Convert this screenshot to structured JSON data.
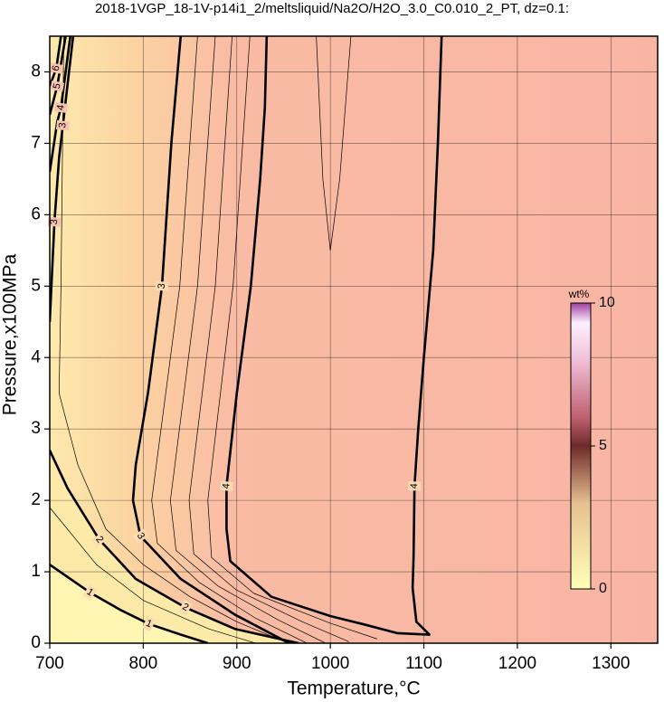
{
  "chart_data": {
    "type": "contour",
    "title": "2018-1VGP_18-1V-p14i1_2/meltsliquid/Na2O/H2O_3.0_C0.010_2_PT, dz=0.1:",
    "x_label": "Temperature,°C",
    "y_label": "Pressure,x100MPa",
    "xlim": [
      700,
      1350
    ],
    "ylim": [
      0,
      8.5
    ],
    "xticks": [
      700,
      800,
      900,
      1000,
      1100,
      1200,
      1300
    ],
    "yticks": [
      0,
      1,
      2,
      3,
      4,
      5,
      6,
      7,
      8
    ],
    "grid": true,
    "contours": [
      {
        "level": 1,
        "thick": true,
        "x": [
          700,
          743,
          775,
          806,
          840,
          869
        ],
        "y": [
          1.1,
          0.71,
          0.47,
          0.27,
          0.12,
          0
        ]
      },
      {
        "level": 2,
        "thick": true,
        "x": [
          700,
          719,
          753,
          792,
          845,
          898,
          966
        ],
        "y": [
          2.7,
          2.17,
          1.45,
          0.9,
          0.5,
          0.2,
          0
        ]
      },
      {
        "level": 3,
        "thick": true,
        "x": [
          840,
          830,
          820,
          805,
          792,
          789,
          797,
          840,
          898,
          956
        ],
        "y": [
          8.5,
          7,
          5,
          3.5,
          2.5,
          2,
          1.5,
          0.9,
          0.4,
          0
        ]
      },
      {
        "level": 4,
        "thick": true,
        "x": [
          932,
          930,
          925,
          915,
          900,
          889,
          889,
          893,
          937,
          1000,
          1034,
          1072,
          1106,
          1092,
          1088,
          1089,
          1090,
          1094,
          1100,
          1110,
          1115,
          1119
        ],
        "y": [
          8.5,
          7.5,
          6.5,
          5,
          3.5,
          2.2,
          1.6,
          1.15,
          0.65,
          0.38,
          0.27,
          0.14,
          0.12,
          0.3,
          0.77,
          1.2,
          2.2,
          3,
          4,
          5.5,
          7,
          8.5
        ]
      },
      {
        "level": 3,
        "thick": true,
        "x": [
          700,
          705,
          710,
          714,
          725
        ],
        "y": [
          4.5,
          5.9,
          6.8,
          7.25,
          8.5
        ]
      },
      {
        "level": 4,
        "thick": true,
        "x": [
          700,
          708,
          712,
          722
        ],
        "y": [
          6.6,
          7.3,
          7.5,
          8.5
        ]
      },
      {
        "level": 5,
        "thick": true,
        "x": [
          700,
          708,
          717
        ],
        "y": [
          7.4,
          7.8,
          8.5
        ]
      },
      {
        "level": 6,
        "thick": true,
        "x": [
          700,
          707,
          712
        ],
        "y": [
          7.8,
          8.05,
          8.5
        ]
      },
      {
        "level": 1.5,
        "thick": false,
        "x": [
          700,
          750,
          800,
          870,
          920
        ],
        "y": [
          1.9,
          1.1,
          0.6,
          0.2,
          0
        ]
      },
      {
        "level": 2.5,
        "thick": false,
        "x": [
          715,
          712,
          710,
          730,
          760,
          800,
          850,
          900,
          955
        ],
        "y": [
          8.5,
          5,
          3.5,
          2.5,
          1.6,
          1.1,
          0.65,
          0.3,
          0
        ]
      },
      {
        "level": 3.2,
        "thick": false,
        "x": [
          858,
          839,
          809,
          815,
          860,
          920,
          975
        ],
        "y": [
          8.5,
          5,
          2,
          1.4,
          0.85,
          0.35,
          0
        ]
      },
      {
        "level": 3.4,
        "thick": false,
        "x": [
          877,
          858,
          829,
          835,
          880,
          945,
          995
        ],
        "y": [
          8.5,
          5,
          2,
          1.3,
          0.8,
          0.32,
          0
        ]
      },
      {
        "level": 3.6,
        "thick": false,
        "x": [
          895,
          877,
          849,
          854,
          899,
          970,
          1020
        ],
        "y": [
          8.5,
          5,
          2,
          1.25,
          0.75,
          0.3,
          0.02
        ]
      },
      {
        "level": 3.8,
        "thick": false,
        "x": [
          914,
          896,
          869,
          873,
          918,
          1000,
          1050
        ],
        "y": [
          8.5,
          5,
          2,
          1.2,
          0.7,
          0.28,
          0.06
        ]
      },
      {
        "level": 3.9,
        "thick": false,
        "x": [
          985,
          992,
          1000,
          1010,
          1022
        ],
        "y": [
          8.5,
          6.5,
          5.5,
          6.5,
          8.5
        ]
      }
    ],
    "colorbar": {
      "title": "wt%",
      "lim": [
        0,
        10
      ],
      "ticks": [
        0,
        5,
        10
      ],
      "colors": [
        {
          "value": 0,
          "color": "#ffffb8"
        },
        {
          "value": 3,
          "color": "#e6c090"
        },
        {
          "value": 5,
          "color": "#6e2a2a"
        },
        {
          "value": 6,
          "color": "#c06070"
        },
        {
          "value": 8,
          "color": "#f0c0d8"
        },
        {
          "value": 9.3,
          "color": "#fff0ff"
        },
        {
          "value": 10,
          "color": "#a040a0"
        }
      ]
    }
  }
}
